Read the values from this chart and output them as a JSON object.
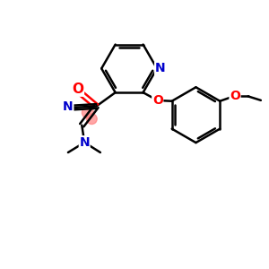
{
  "background_color": "#ffffff",
  "bond_color": "#000000",
  "nitrogen_color": "#0000cc",
  "oxygen_color": "#ff0000",
  "highlight_color": "#ff8080",
  "line_width": 1.8,
  "figsize": [
    3.0,
    3.0
  ],
  "dpi": 100,
  "xlim": [
    0,
    10
  ],
  "ylim": [
    0,
    10
  ]
}
